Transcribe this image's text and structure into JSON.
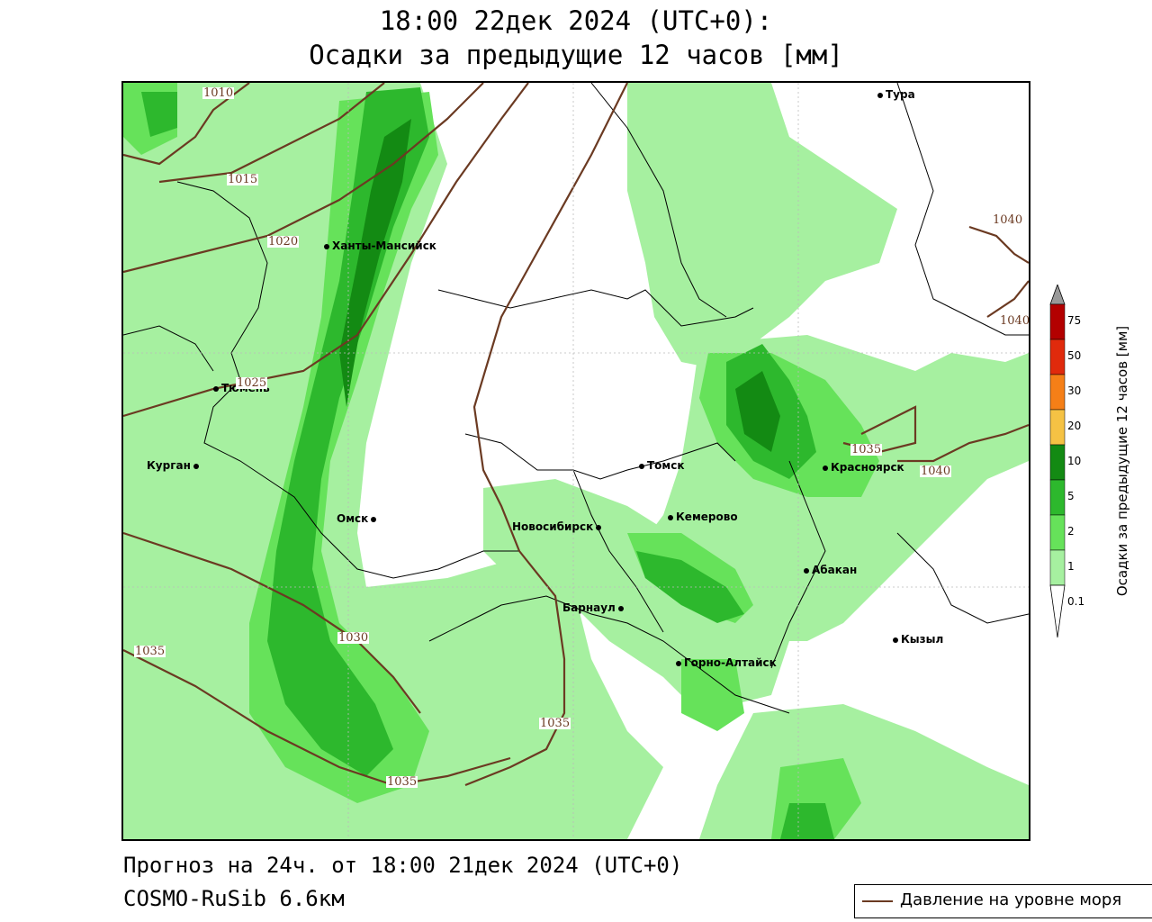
{
  "header": {
    "line1": "18:00 22дек 2024 (UTC+0):",
    "line2": "Осадки за предыдущие 12 часов [мм]"
  },
  "footer": {
    "forecast": "Прогноз на 24ч. от 18:00 21дек 2024 (UTC+0)",
    "model": "COSMO-RuSib 6.6км"
  },
  "legend": {
    "pressure_label": "Давление на уровне моря",
    "pressure_color": "#6b3a22"
  },
  "colorbar": {
    "title": "Осадки за предыдущие 12 часов [мм]",
    "levels": [
      "0.1",
      "1",
      "2",
      "5",
      "10",
      "20",
      "30",
      "50",
      "75"
    ],
    "colors": [
      "#ffffff",
      "#a6f0a0",
      "#66e25a",
      "#2db82d",
      "#138a13",
      "#f5c244",
      "#f57f17",
      "#e02a0c",
      "#b30000",
      "#999999"
    ]
  },
  "cities": [
    {
      "name": "Тура"
    },
    {
      "name": "Ханты-Мансийск"
    },
    {
      "name": "Тюмень"
    },
    {
      "name": "Курган"
    },
    {
      "name": "Омск"
    },
    {
      "name": "Новосибирск"
    },
    {
      "name": "Томск"
    },
    {
      "name": "Кемерово"
    },
    {
      "name": "Красноярск"
    },
    {
      "name": "Абакан"
    },
    {
      "name": "Барнаул"
    },
    {
      "name": "Горно-Алтайск"
    },
    {
      "name": "Кызыл"
    }
  ],
  "isobars": [
    "1010",
    "1015",
    "1020",
    "1025",
    "1030",
    "1035",
    "1035",
    "1035",
    "1035",
    "1040",
    "1040",
    "1040"
  ]
}
